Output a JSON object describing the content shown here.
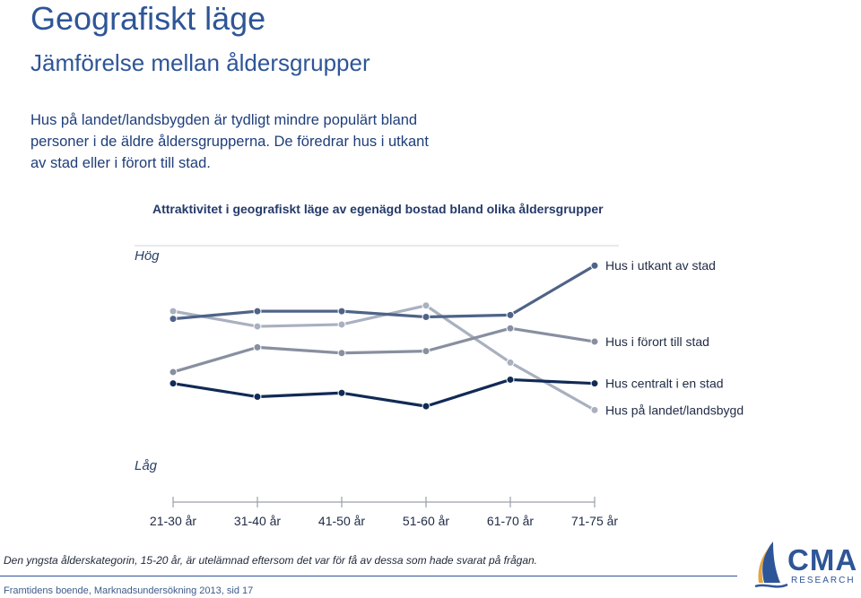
{
  "page": {
    "title": "Geografiskt läge",
    "subtitle": "Jämförelse mellan åldersgrupper",
    "intro": "Hus på landet/landsbygden är tydligt mindre populärt bland personer i de äldre åldersgrupperna. De föredrar hus i utkant av stad eller i förort till stad.",
    "footnote": "Den yngsta ålderskategorin, 15-20 år, är utelämnad eftersom det var för få av dessa som hade svarat på frågan.",
    "source": "Framtidens boende, Marknadsundersökning 2013, sid 17"
  },
  "logo": {
    "name": "CMA",
    "tagline": "RESEARCH",
    "colors": {
      "blue": "#2e5597",
      "orange": "#e8a33a"
    }
  },
  "chart_data": {
    "type": "line",
    "title": "Attraktivitet i geografiskt läge av egenägd bostad bland olika åldersgrupper",
    "xlabel": "",
    "ylabel": "",
    "y_top_label": "Hög",
    "y_bottom_label": "Låg",
    "ylim": [
      0,
      10
    ],
    "categories": [
      "21-30 år",
      "31-40 år",
      "41-50 år",
      "51-60 år",
      "61-70 år",
      "71-75 år"
    ],
    "grid": false,
    "legend": "right, labels at line ends",
    "series": [
      {
        "name": "Hus i utkant av stad",
        "color": "#4f6387",
        "values": [
          7.0,
          7.4,
          7.4,
          7.1,
          7.2,
          9.8
        ]
      },
      {
        "name": "Hus i förort till stad",
        "color": "#878fa0",
        "values": [
          4.2,
          5.5,
          5.2,
          5.3,
          6.5,
          5.8
        ]
      },
      {
        "name": "Hus centralt i en stad",
        "color": "#112a56",
        "values": [
          3.6,
          2.9,
          3.1,
          2.4,
          3.8,
          3.6
        ]
      },
      {
        "name": "Hus på landet/landsbygd",
        "color": "#a9b0c0",
        "values": [
          7.4,
          6.6,
          6.7,
          7.7,
          4.7,
          2.2
        ]
      }
    ]
  }
}
